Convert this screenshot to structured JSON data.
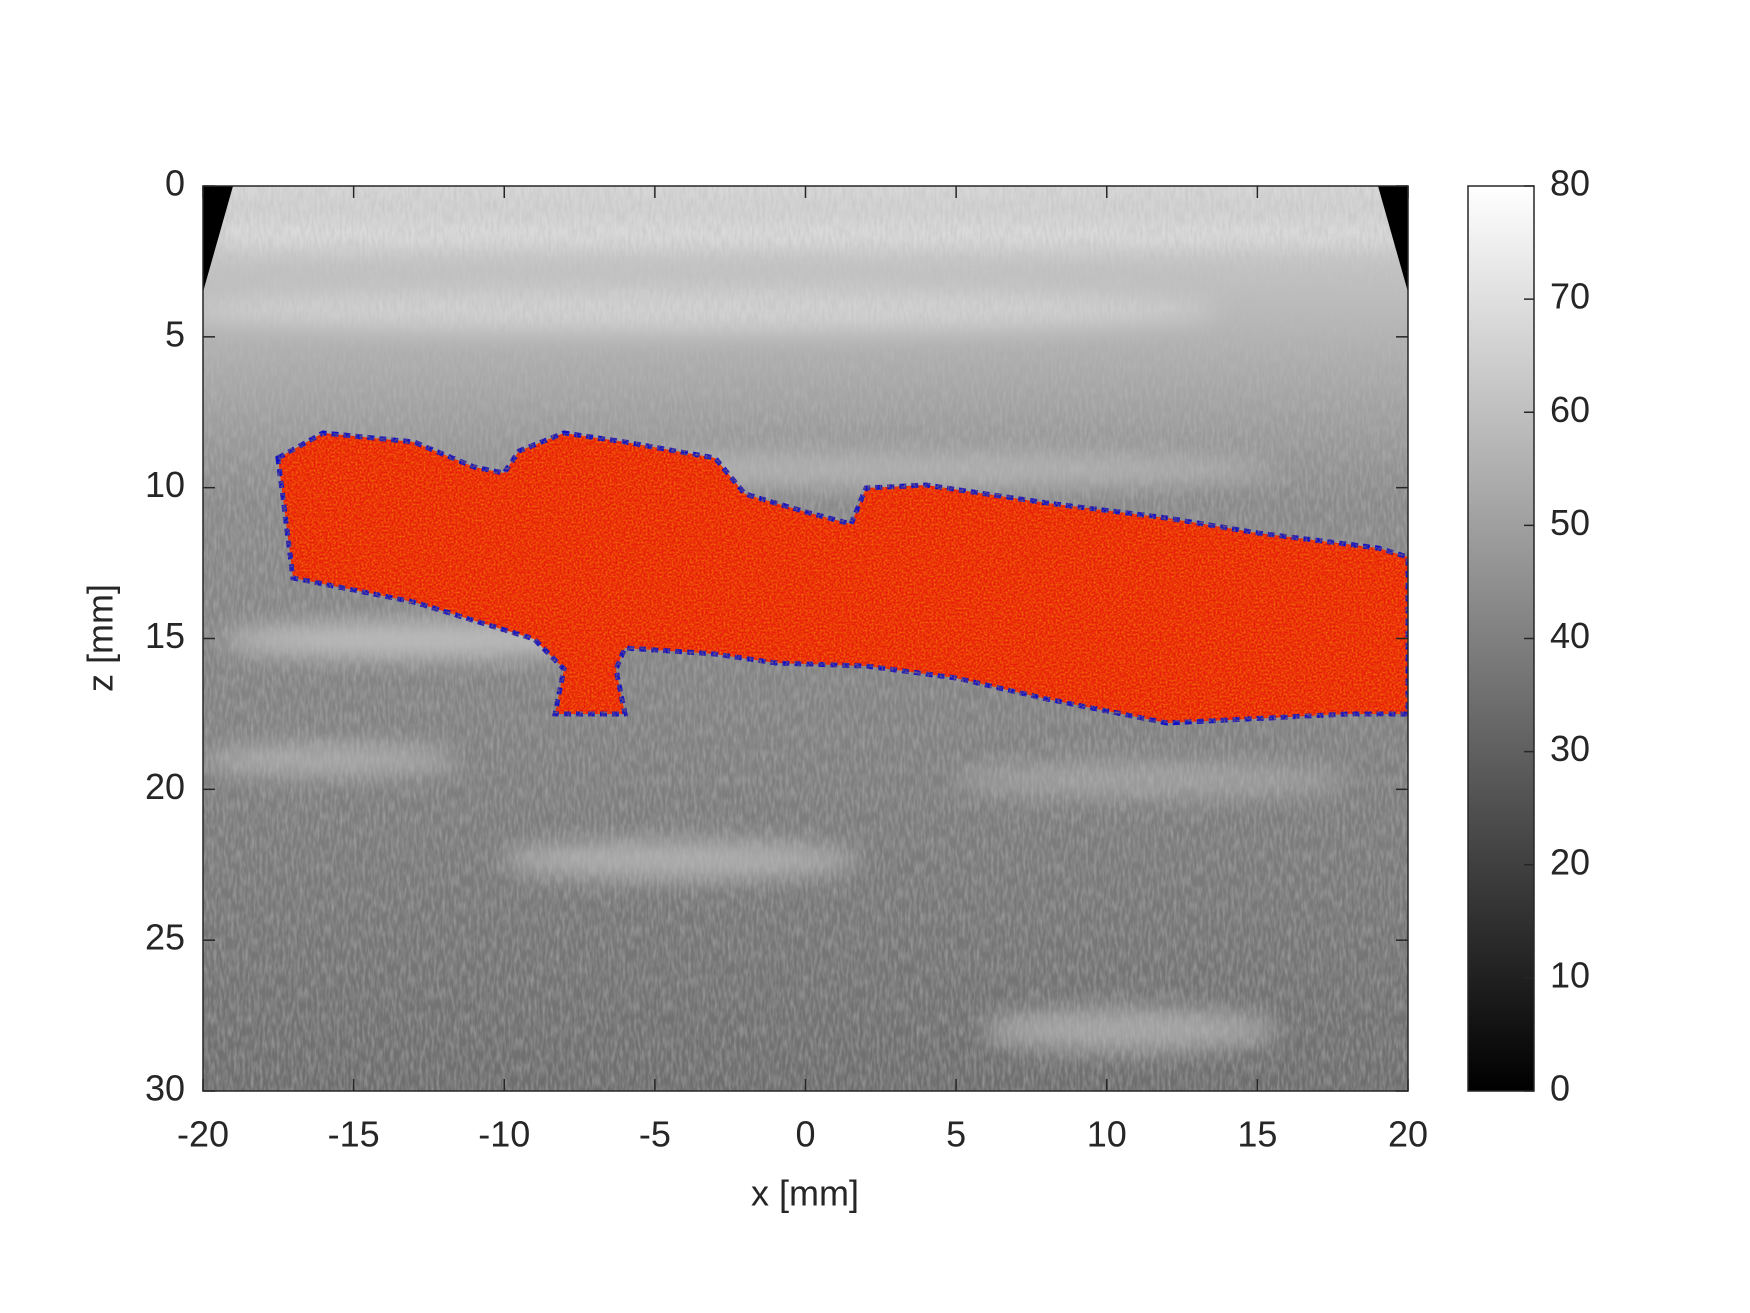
{
  "chart_data": {
    "type": "image",
    "xlabel": "x [mm]",
    "ylabel": "z [mm]",
    "xlim": [
      -20,
      20
    ],
    "xticks": [
      -20,
      -15,
      -10,
      -5,
      0,
      5,
      10,
      15,
      20
    ],
    "ylim": [
      0,
      30
    ],
    "yticks": [
      0,
      5,
      10,
      15,
      20,
      25,
      30
    ],
    "y_reversed": true,
    "colorbar": {
      "lim": [
        0,
        80
      ],
      "ticks": [
        0,
        10,
        20,
        30,
        40,
        50,
        60,
        70,
        80
      ]
    }
  }
}
